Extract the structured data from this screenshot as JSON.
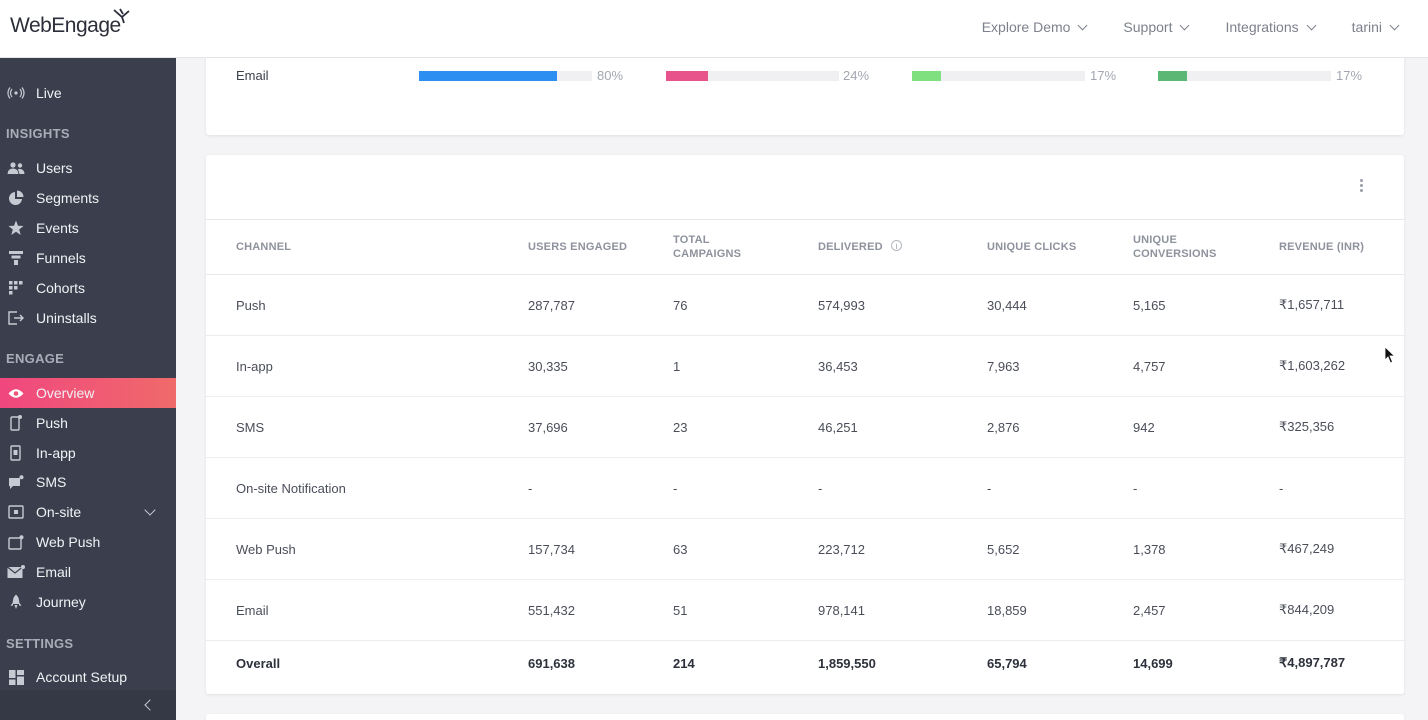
{
  "header": {
    "logo": "WebEngage",
    "nav": [
      "Explore Demo",
      "Support",
      "Integrations",
      "tarini"
    ]
  },
  "sidebar": {
    "live": "Live",
    "sections": {
      "insights": "INSIGHTS",
      "engage": "ENGAGE",
      "settings": "SETTINGS"
    },
    "insights_items": [
      "Users",
      "Segments",
      "Events",
      "Funnels",
      "Cohorts",
      "Uninstalls"
    ],
    "engage_items": [
      "Overview",
      "Push",
      "In-app",
      "SMS",
      "On-site",
      "Web Push",
      "Email",
      "Journey"
    ],
    "settings_items": [
      "Account Setup"
    ],
    "active": "Overview"
  },
  "channel_bars": {
    "label": "Email",
    "bars": [
      {
        "percent_text": "80%",
        "fill": 0.8,
        "color": "#2b8ef0"
      },
      {
        "percent_text": "24%",
        "fill": 0.24,
        "color": "#e9538c"
      },
      {
        "percent_text": "17%",
        "fill": 0.17,
        "color": "#7ee07e"
      },
      {
        "percent_text": "17%",
        "fill": 0.17,
        "color": "#5bb874"
      }
    ]
  },
  "table": {
    "headers": [
      "CHANNEL",
      "USERS ENGAGED",
      "TOTAL CAMPAIGNS",
      "DELIVERED",
      "UNIQUE CLICKS",
      "UNIQUE CONVERSIONS",
      "REVENUE (INR)"
    ],
    "rows": [
      [
        "Push",
        "287,787",
        "76",
        "574,993",
        "30,444",
        "5,165",
        "₹1,657,711"
      ],
      [
        "In-app",
        "30,335",
        "1",
        "36,453",
        "7,963",
        "4,757",
        "₹1,603,262"
      ],
      [
        "SMS",
        "37,696",
        "23",
        "46,251",
        "2,876",
        "942",
        "₹325,356"
      ],
      [
        "On-site Notification",
        "-",
        "-",
        "-",
        "-",
        "-",
        "-"
      ],
      [
        "Web Push",
        "157,734",
        "63",
        "223,712",
        "5,652",
        "1,378",
        "₹467,249"
      ],
      [
        "Email",
        "551,432",
        "51",
        "978,141",
        "18,859",
        "2,457",
        "₹844,209"
      ]
    ],
    "total": [
      "Overall",
      "691,638",
      "214",
      "1,859,550",
      "65,794",
      "14,699",
      "₹4,897,787"
    ]
  }
}
